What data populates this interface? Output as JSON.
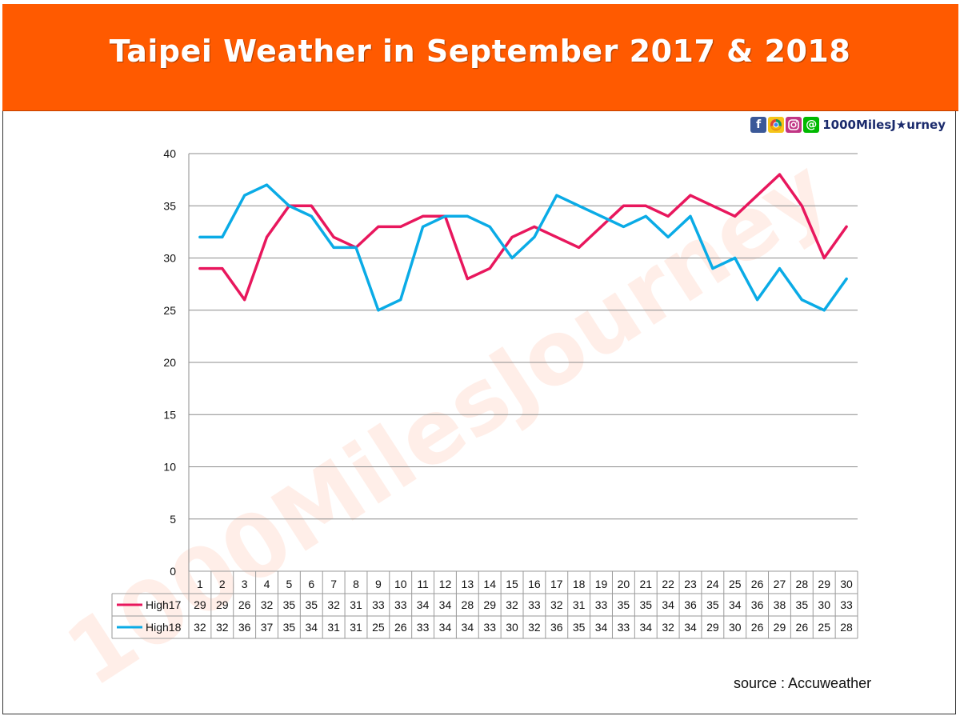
{
  "title": "Taipei Weather in September 2017 & 2018",
  "brand": {
    "icons": [
      "facebook-icon",
      "chrome-icon",
      "instagram-icon",
      "line-at-icon"
    ],
    "text": "1000MilesJ★urney"
  },
  "watermark": "1000MilesJourney",
  "source": "source : Accuweather",
  "colors": {
    "banner": "#ff5a00",
    "high17": "#e8175d",
    "high18": "#0aabe6",
    "grid": "#8c8c8c"
  },
  "chart_data": {
    "type": "line",
    "title": "",
    "xlabel": "",
    "ylabel": "",
    "ylim": [
      0,
      40
    ],
    "yticks": [
      0,
      5,
      10,
      15,
      20,
      25,
      30,
      35,
      40
    ],
    "grid": true,
    "legend": "data-table-left",
    "categories": [
      "1",
      "2",
      "3",
      "4",
      "5",
      "6",
      "7",
      "8",
      "9",
      "10",
      "11",
      "12",
      "13",
      "14",
      "15",
      "16",
      "17",
      "18",
      "19",
      "20",
      "21",
      "22",
      "23",
      "24",
      "25",
      "26",
      "27",
      "28",
      "29",
      "30"
    ],
    "series": [
      {
        "name": "High17",
        "color": "#e8175d",
        "values": [
          29,
          29,
          26,
          32,
          35,
          35,
          32,
          31,
          33,
          33,
          34,
          34,
          28,
          29,
          32,
          33,
          32,
          31,
          33,
          35,
          35,
          34,
          36,
          35,
          34,
          36,
          38,
          35,
          30,
          33
        ]
      },
      {
        "name": "High18",
        "color": "#0aabe6",
        "values": [
          32,
          32,
          36,
          37,
          35,
          34,
          31,
          31,
          25,
          26,
          33,
          34,
          34,
          33,
          30,
          32,
          36,
          35,
          34,
          33,
          34,
          32,
          34,
          29,
          30,
          26,
          29,
          26,
          25,
          28
        ]
      }
    ]
  }
}
